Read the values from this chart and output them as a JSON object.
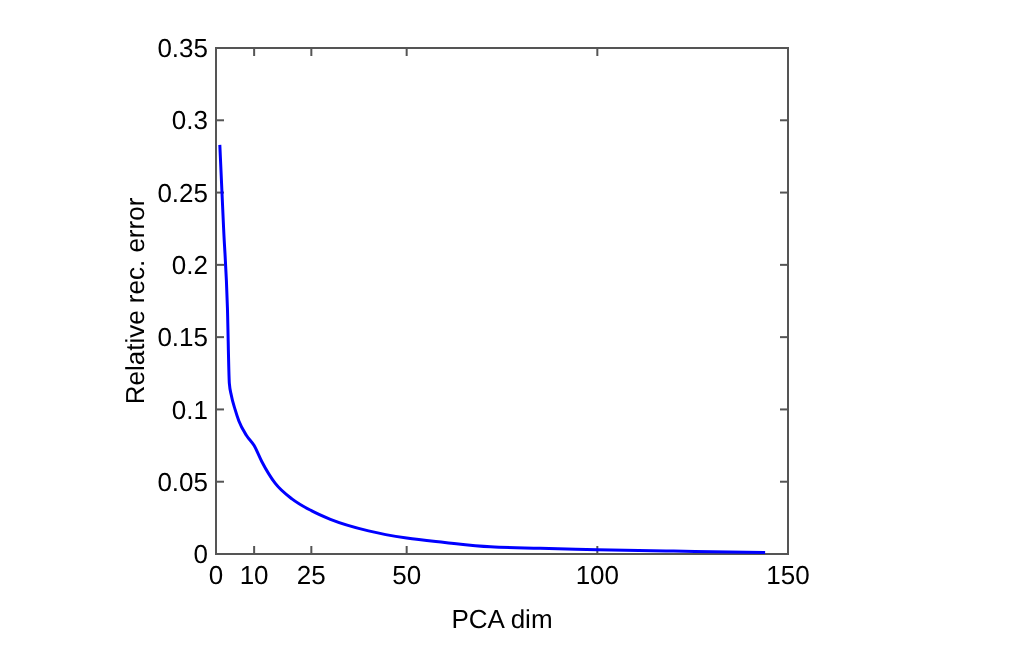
{
  "chart_data": {
    "type": "line",
    "xlabel": "PCA dim",
    "ylabel": "Relative rec. error",
    "x": [
      1,
      2,
      3,
      3.5,
      4,
      5,
      6,
      8,
      10,
      12,
      15.5,
      20,
      25,
      30,
      40,
      50,
      60,
      72,
      85,
      100,
      120,
      144
    ],
    "series": [
      {
        "color": "#0000ff",
        "values": [
          0.283,
          0.225,
          0.17,
          0.118,
          0.11,
          0.1,
          0.092,
          0.082,
          0.075,
          0.064,
          0.049,
          0.038,
          0.03,
          0.024,
          0.016,
          0.011,
          0.008,
          0.005,
          0.004,
          0.003,
          0.002,
          0.001
        ]
      }
    ],
    "xlim": [
      0,
      150
    ],
    "xticks": [
      0,
      10,
      25,
      50,
      100,
      150
    ],
    "ylim": [
      0,
      0.35
    ],
    "yticks": [
      0,
      0.05,
      0.1,
      0.15,
      0.2,
      0.25,
      0.3,
      0.35
    ],
    "grid": false,
    "marker": "none",
    "line_style": "solid"
  }
}
